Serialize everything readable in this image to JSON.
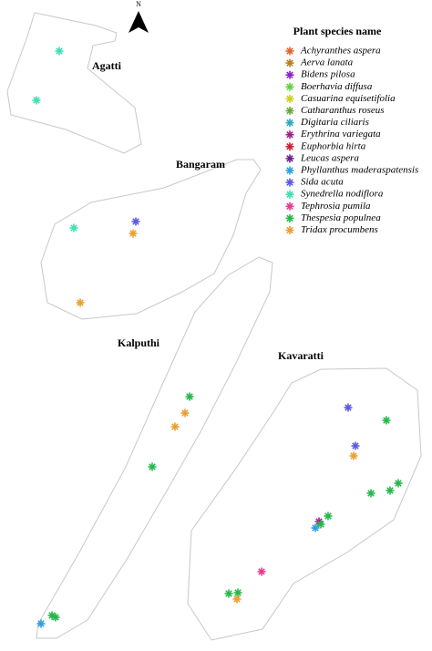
{
  "map": {
    "north_label": "N",
    "islands": [
      "Agatti",
      "Bangaram",
      "Kalputhi",
      "Kavaratti"
    ],
    "legend": {
      "title": "Plant species name",
      "items": [
        {
          "name": "Achyranthes aspera",
          "color": "#e5622a"
        },
        {
          "name": "Aerva lanata",
          "color": "#b87d1e"
        },
        {
          "name": "Bidens pilosa",
          "color": "#8e1fc9"
        },
        {
          "name": "Boerhavia diffusa",
          "color": "#5fd23d"
        },
        {
          "name": "Casuarina equisetifolia",
          "color": "#c8d21e"
        },
        {
          "name": "Catharanthus roseus",
          "color": "#6aa83a"
        },
        {
          "name": "Digitaria ciliaris",
          "color": "#2aa6c8"
        },
        {
          "name": "Erythrina variegata",
          "color": "#a0208a"
        },
        {
          "name": "Euphorbia hirta",
          "color": "#cc1f3a"
        },
        {
          "name": "Leucas aspera",
          "color": "#6a1e8c"
        },
        {
          "name": "Phyllanthus maderaspatensis",
          "color": "#2a9fe0"
        },
        {
          "name": "Sida acuta",
          "color": "#5a5ae6"
        },
        {
          "name": "Synedrella nodiflora",
          "color": "#3de0b0"
        },
        {
          "name": "Tephrosia pumila",
          "color": "#e83a8e"
        },
        {
          "name": "Thespesia populnea",
          "color": "#23b84a"
        },
        {
          "name": "Tridax procumbens",
          "color": "#e8a030"
        }
      ]
    }
  }
}
